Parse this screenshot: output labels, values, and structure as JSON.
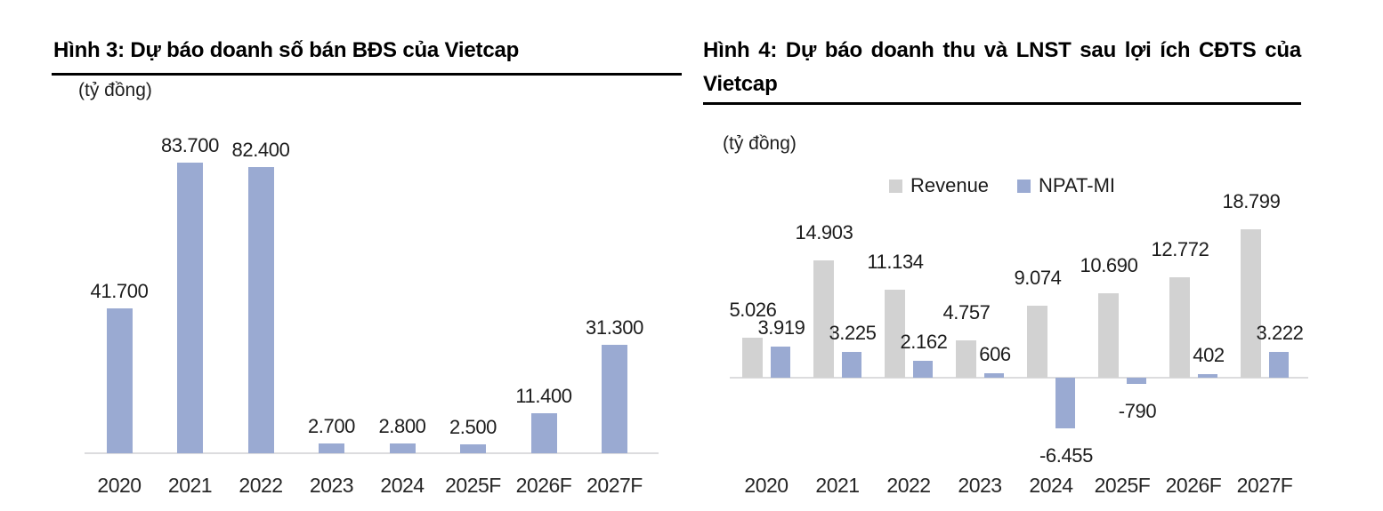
{
  "figures": [
    {
      "figure_label": "Hình 3",
      "title": "Hình 3: Dự báo doanh số bán BĐS của Vietcap",
      "unit_label": "(tỷ đồng)"
    },
    {
      "figure_label": "Hình 4",
      "title_line1": "Hình 4: Dự báo doanh thu và LNST sau lợi ích CĐTS của",
      "title_line2": "Vietcap",
      "unit_label": "(tỷ đồng)"
    }
  ],
  "chart_data": [
    {
      "type": "bar",
      "title": "Hình 3: Dự báo doanh số bán BĐS của Vietcap",
      "unit": "tỷ đồng",
      "categories": [
        "2020",
        "2021",
        "2022",
        "2023",
        "2024",
        "2025F",
        "2026F",
        "2027F"
      ],
      "values": [
        41700,
        83700,
        82400,
        2700,
        2800,
        2500,
        11400,
        31300
      ],
      "value_labels": [
        "41.700",
        "83.700",
        "82.400",
        "2.700",
        "2.800",
        "2.500",
        "11.400",
        "31.300"
      ],
      "bar_color": "#9aaad2",
      "axis_color": "#dcdcde",
      "xlabel": "",
      "ylabel": "tỷ đồng",
      "ylim": [
        0,
        90000
      ],
      "grid": false,
      "legend_position": "none",
      "data_labels": true
    },
    {
      "type": "bar",
      "title": "Hình 4: Dự báo doanh thu và LNST sau lợi ích CĐTS của Vietcap",
      "unit": "tỷ đồng",
      "categories": [
        "2020",
        "2021",
        "2022",
        "2023",
        "2024",
        "2025F",
        "2026F",
        "2027F"
      ],
      "series": [
        {
          "name": "Revenue",
          "color": "#d2d2d2",
          "values": [
            5026,
            14903,
            11134,
            4757,
            9074,
            10690,
            12772,
            18799
          ],
          "value_labels": [
            "5.026",
            "14.903",
            "11.134",
            "4.757",
            "9.074",
            "10.690",
            "12.772",
            "18.799"
          ]
        },
        {
          "name": "NPAT-MI",
          "color": "#9aaad2",
          "values": [
            3919,
            3225,
            2162,
            606,
            -6455,
            -790,
            402,
            3222
          ],
          "value_labels": [
            "3.919",
            "3.225",
            "2.162",
            "606",
            "-6.455",
            "-790",
            "402",
            "3.222"
          ]
        }
      ],
      "axis_color": "#dcdcde",
      "xlabel": "",
      "ylabel": "tỷ đồng",
      "ylim": [
        -8000,
        20000
      ],
      "grid": false,
      "legend_position": "top",
      "data_labels": true
    }
  ],
  "colors": {
    "bar_blue": "#9aaad2",
    "bar_gray": "#d2d2d2",
    "axis_line": "#dcdcde",
    "title_rule": "#000000",
    "text": "#1f1f1f"
  }
}
